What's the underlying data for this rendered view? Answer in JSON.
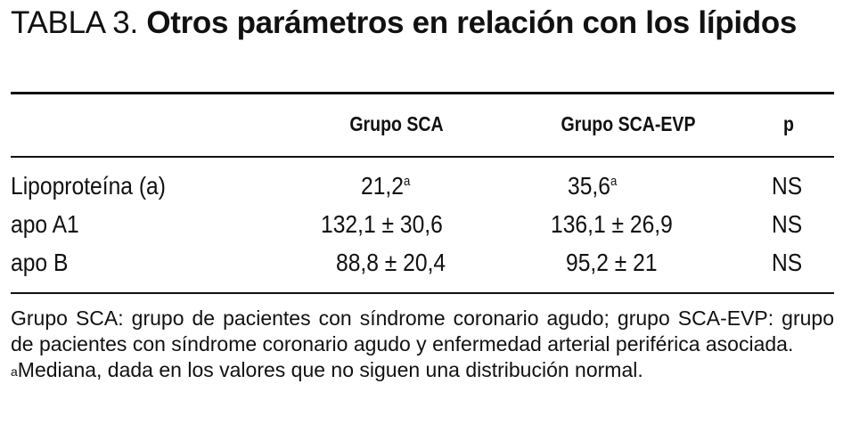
{
  "title": {
    "label": "TABLA 3.",
    "text": "Otros parámetros en relación con los lípidos"
  },
  "table": {
    "headers": [
      "",
      "Grupo SCA",
      "Grupo SCA-EVP",
      "p"
    ],
    "rows": [
      {
        "param": "Lipoproteína (a)",
        "sca": "21,2",
        "sca_sup": "a",
        "evp": "35,6",
        "evp_sup": "a",
        "p": "NS"
      },
      {
        "param": "apo A1",
        "sca": "132,1 ± 30,6",
        "sca_sup": "",
        "evp": "136,1 ± 26,9",
        "evp_sup": "",
        "p": "NS"
      },
      {
        "param": "apo B",
        "sca": "88,8 ± 20,4",
        "sca_sup": "",
        "evp": "95,2 ± 21",
        "evp_sup": "",
        "p": "NS"
      }
    ]
  },
  "footnotes": {
    "abbrev": "Grupo SCA: grupo de pacientes con síndrome coronario agudo; grupo SCA-EVP: grupo de pacientes con síndrome coronario agudo y enfermedad arterial periférica asociada.",
    "note_mark": "a",
    "note_text": "Mediana, dada en los valores que no siguen una distribución normal."
  }
}
